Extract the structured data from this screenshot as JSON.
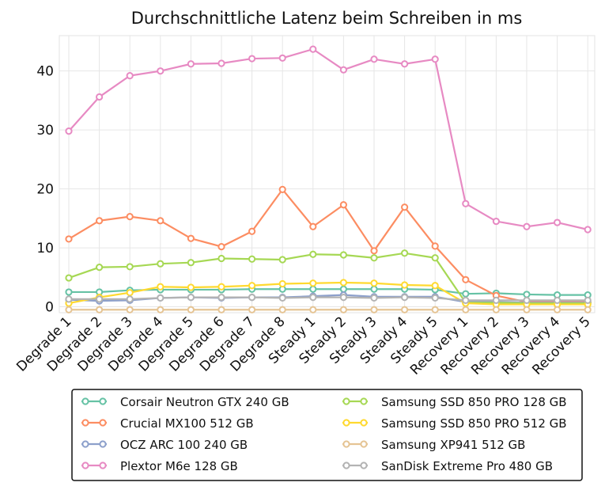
{
  "chart_data": {
    "type": "line",
    "title": "Durchschnittliche Latenz beim Schreiben in ms",
    "xlabel": "",
    "ylabel": "",
    "ylim": [
      -1,
      46
    ],
    "yticks": [
      0,
      10,
      20,
      30,
      40
    ],
    "grid": true,
    "legend_position": "bottom",
    "categories": [
      "Degrade 1",
      "Degrade 2",
      "Degrade 3",
      "Degrade 4",
      "Degrade 5",
      "Degrade 6",
      "Degrade 7",
      "Degrade 8",
      "Steady 1",
      "Steady 2",
      "Steady 3",
      "Steady 4",
      "Steady 5",
      "Recovery 1",
      "Recovery 2",
      "Recovery 3",
      "Recovery 4",
      "Recovery 5"
    ],
    "series": [
      {
        "name": "Corsair Neutron GTX 240 GB",
        "color": "#66c2a5",
        "values": [
          2.5,
          2.5,
          2.8,
          2.9,
          2.9,
          2.9,
          3.0,
          3.0,
          3.0,
          3.0,
          3.0,
          3.0,
          2.9,
          2.2,
          2.3,
          2.1,
          2.0,
          2.0
        ]
      },
      {
        "name": "Crucial MX100 512 GB",
        "color": "#fc8d62",
        "values": [
          11.5,
          14.6,
          15.3,
          14.6,
          11.6,
          10.2,
          12.8,
          19.9,
          13.6,
          17.3,
          9.5,
          16.9,
          10.3,
          4.6,
          1.9,
          0.8,
          0.8,
          0.8
        ]
      },
      {
        "name": "OCZ ARC 100 240 GB",
        "color": "#8da0cb",
        "values": [
          1.2,
          1.0,
          1.1,
          1.5,
          1.6,
          1.5,
          1.6,
          1.6,
          1.8,
          2.0,
          1.7,
          1.7,
          1.7,
          0.8,
          0.8,
          0.7,
          0.7,
          0.7
        ]
      },
      {
        "name": "Plextor M6e 128 GB",
        "color": "#e78ac3",
        "values": [
          29.8,
          35.6,
          39.2,
          40.0,
          41.2,
          41.3,
          42.1,
          42.2,
          43.7,
          40.2,
          42.0,
          41.2,
          42.0,
          17.5,
          14.5,
          13.6,
          14.3,
          13.1
        ]
      },
      {
        "name": "Samsung SSD 850 PRO 128 GB",
        "color": "#a6d854",
        "values": [
          4.9,
          6.7,
          6.8,
          7.3,
          7.5,
          8.2,
          8.1,
          8.0,
          8.9,
          8.8,
          8.3,
          9.1,
          8.3,
          0.7,
          0.7,
          0.6,
          0.6,
          0.6
        ]
      },
      {
        "name": "Samsung SSD 850 PRO 512 GB",
        "color": "#ffd92f",
        "values": [
          0.6,
          1.6,
          2.4,
          3.4,
          3.3,
          3.4,
          3.6,
          3.9,
          4.0,
          4.1,
          4.0,
          3.7,
          3.6,
          0.6,
          0.4,
          0.4,
          0.4,
          0.4
        ]
      },
      {
        "name": "Samsung XP941 512 GB",
        "color": "#e5c494",
        "values": [
          -0.5,
          -0.5,
          -0.5,
          -0.5,
          -0.5,
          -0.5,
          -0.5,
          -0.5,
          -0.5,
          -0.5,
          -0.5,
          -0.5,
          -0.5,
          -0.5,
          -0.5,
          -0.5,
          -0.5,
          -0.5
        ]
      },
      {
        "name": "SanDisk Extreme Pro 480 GB",
        "color": "#b3b3b3",
        "values": [
          1.3,
          1.3,
          1.3,
          1.5,
          1.6,
          1.6,
          1.6,
          1.5,
          1.6,
          1.6,
          1.5,
          1.6,
          1.5,
          1.1,
          1.1,
          1.1,
          1.1,
          1.1
        ]
      }
    ]
  }
}
